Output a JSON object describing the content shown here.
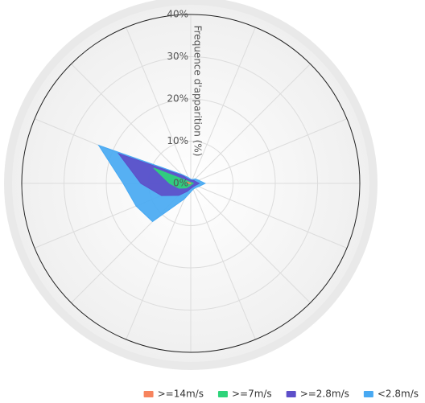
{
  "chart_data": {
    "type": "polar-area",
    "stacked": true,
    "y_axis_title": "Frequence d'apparition (%)",
    "ylim": [
      0,
      40
    ],
    "yticks": [
      {
        "value": 0,
        "label": "0%"
      },
      {
        "value": 10,
        "label": "10%"
      },
      {
        "value": 20,
        "label": "20%"
      },
      {
        "value": 30,
        "label": "30%"
      },
      {
        "value": 40,
        "label": "40%"
      }
    ],
    "grid": true,
    "legend": "bottom-right",
    "series": [
      {
        "name": ">=14m/s",
        "color": "#f7845e",
        "values": [
          0,
          0,
          0,
          0,
          0.1,
          0,
          0,
          0,
          0,
          0,
          0.1,
          0.2,
          0.5,
          1,
          0.1,
          0
        ]
      },
      {
        "name": ">=7m/s",
        "color": "#2ed47a",
        "values": [
          0.3,
          0.3,
          0.3,
          0.4,
          0.5,
          0.4,
          0.3,
          0.3,
          0.4,
          0.6,
          1.4,
          2.8,
          4.5,
          8.5,
          0.5,
          0.3
        ]
      },
      {
        "name": ">=2.8m/s",
        "color": "#5d4fc9",
        "values": [
          0.5,
          0.5,
          0.7,
          0.8,
          1.4,
          0.8,
          0.7,
          0.7,
          0.8,
          1.4,
          2.5,
          4.5,
          6.8,
          9,
          1.9,
          0.7
        ]
      },
      {
        "name": "<2.8m/s",
        "color": "#48a9f2",
        "values": [
          0.2,
          0.2,
          0.5,
          0.8,
          1.4,
          0.8,
          0.5,
          0.5,
          0.8,
          2,
          8.8,
          6.5,
          4.2,
          5.1,
          0.5,
          0.5
        ]
      }
    ]
  }
}
